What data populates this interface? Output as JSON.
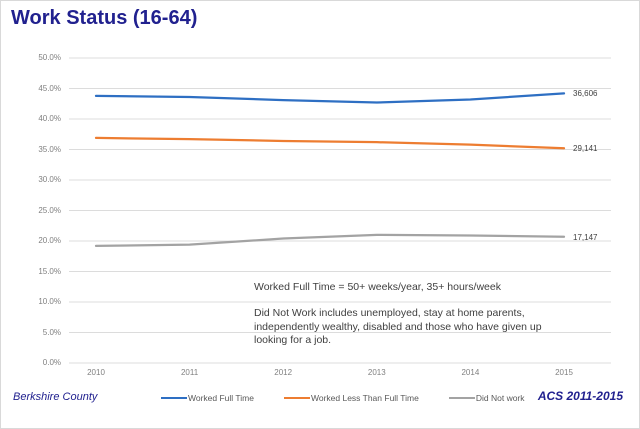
{
  "page": {
    "title": "Work Status (16-64)"
  },
  "annotations": {
    "full_time_note": "Worked Full Time = 50+ weeks/year, 35+ hours/week",
    "did_not_work_note": {
      "lines": [
        "Did Not Work includes unemployed, stay at home parents,",
        "independently wealthy, disabled and those who have given up",
        "looking for a job."
      ]
    }
  },
  "footer": {
    "left": "Berkshire County",
    "right": "ACS 2011-2015"
  },
  "colors": {
    "title_navy": "#21218F",
    "gridline": "#DCDCDC",
    "tick_text": "#808080",
    "annotation_text": "#3F3F3F"
  },
  "chart_data": {
    "type": "line",
    "title": "Work Status (16-64)",
    "x": [
      2010,
      2011,
      2012,
      2013,
      2014,
      2015
    ],
    "series": [
      {
        "name": "Worked Full Time",
        "color": "#2E6FC3",
        "values": [
          43.8,
          43.6,
          43.1,
          42.7,
          43.2,
          44.2
        ],
        "end_label": "36,606"
      },
      {
        "name": "Worked Less Than Full Time",
        "color": "#ED7D31",
        "values": [
          36.9,
          36.7,
          36.4,
          36.2,
          35.8,
          35.2
        ],
        "end_label": "29,141"
      },
      {
        "name": "Did Not work",
        "color": "#A3A3A3",
        "values": [
          19.2,
          19.4,
          20.4,
          21.0,
          20.9,
          20.7
        ],
        "end_label": "17,147"
      }
    ],
    "ylim": [
      0,
      50
    ],
    "ytick_step": 5,
    "ytick_labels": [
      "0.0%",
      "5.0%",
      "10.0%",
      "15.0%",
      "20.0%",
      "25.0%",
      "30.0%",
      "35.0%",
      "40.0%",
      "45.0%",
      "50.0%"
    ],
    "grid": true,
    "legend_position": "bottom"
  }
}
